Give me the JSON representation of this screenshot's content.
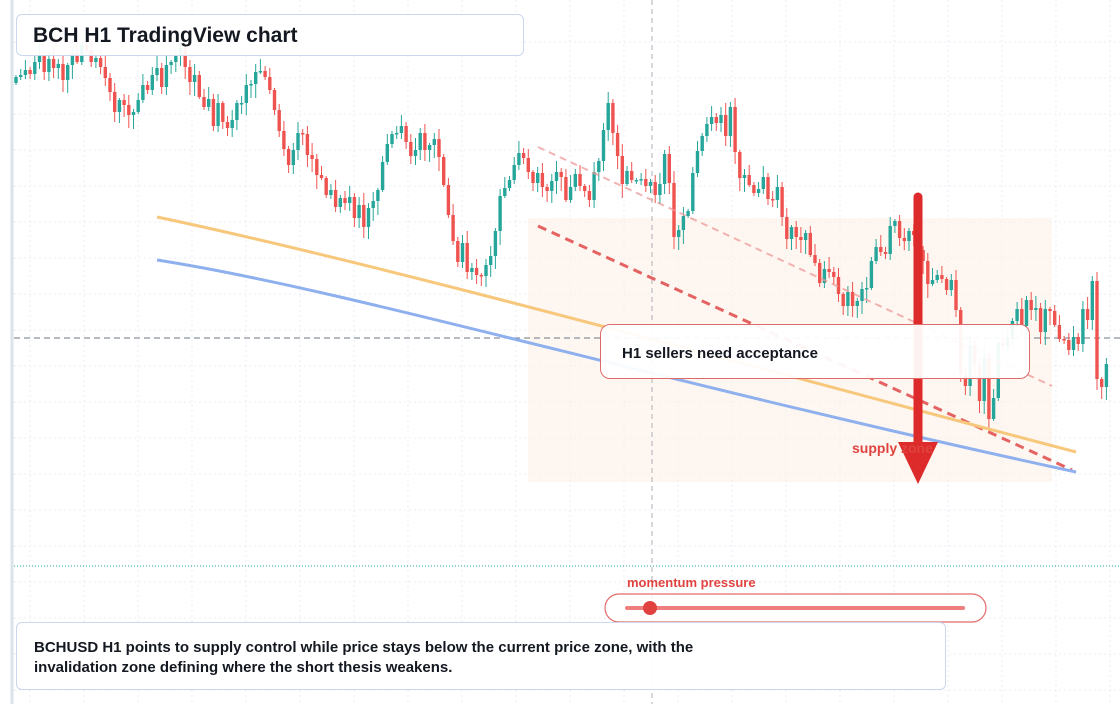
{
  "title": "BCH H1 TradingView chart",
  "callout": "H1 sellers need acceptance",
  "supply_label": "supply zone",
  "momentum_label": "momentum pressure",
  "summary": "BCHUSD H1 points to supply control while price stays below the current price zone, with the invalidation zone defining where the short thesis weakens.",
  "colors": {
    "bull": "#26a69a",
    "bear": "#ef5350",
    "ema_fast": "#f7c87c",
    "ema_slow": "#8fb0ee",
    "arrow": "#dd2a2a",
    "accent": "#e0433f"
  },
  "chart_data": {
    "type": "candlestick",
    "symbol": "BCHUSD",
    "timeframe": "H1",
    "price_levels_relative": [
      1.0,
      0.9,
      0.8,
      0.7,
      0.6,
      0.5,
      0.4,
      0.3,
      0.2,
      0.1,
      0.05,
      0.0
    ],
    "closes_relative": [
      0.903,
      0.905,
      0.91,
      0.906,
      0.918,
      0.925,
      0.908,
      0.921,
      0.912,
      0.916,
      0.9,
      0.915,
      0.927,
      0.918,
      0.935,
      0.93,
      0.918,
      0.922,
      0.913,
      0.902,
      0.888,
      0.868,
      0.88,
      0.875,
      0.865,
      0.868,
      0.88,
      0.895,
      0.89,
      0.905,
      0.912,
      0.893,
      0.915,
      0.918,
      0.925,
      0.932,
      0.913,
      0.898,
      0.905,
      0.883,
      0.873,
      0.881,
      0.854,
      0.877,
      0.858,
      0.852,
      0.86,
      0.877,
      0.877,
      0.895,
      0.896,
      0.908,
      0.909,
      0.903,
      0.89,
      0.87,
      0.849,
      0.831,
      0.815,
      0.83,
      0.847,
      0.846,
      0.825,
      0.821,
      0.805,
      0.802,
      0.785,
      0.79,
      0.773,
      0.782,
      0.777,
      0.783,
      0.762,
      0.775,
      0.753,
      0.772,
      0.779,
      0.79,
      0.818,
      0.836,
      0.846,
      0.847,
      0.854,
      0.838,
      0.824,
      0.83,
      0.847,
      0.83,
      0.835,
      0.841,
      0.823,
      0.795,
      0.765,
      0.739,
      0.718,
      0.737,
      0.708,
      0.712,
      0.705,
      0.704,
      0.715,
      0.724,
      0.749,
      0.784,
      0.792,
      0.8,
      0.815,
      0.827,
      0.822,
      0.808,
      0.797,
      0.807,
      0.793,
      0.789,
      0.799,
      0.808,
      0.803,
      0.78,
      0.793,
      0.806,
      0.794,
      0.789,
      0.78,
      0.808,
      0.819,
      0.85,
      0.877,
      0.847,
      0.824,
      0.796,
      0.809,
      0.8,
      0.8,
      0.801,
      0.794,
      0.798,
      0.785,
      0.796,
      0.826,
      0.797,
      0.743,
      0.75,
      0.764,
      0.769,
      0.807,
      0.829,
      0.844,
      0.856,
      0.863,
      0.857,
      0.865,
      0.844,
      0.873,
      0.828,
      0.802,
      0.805,
      0.795,
      0.787,
      0.791,
      0.803,
      0.781,
      0.78,
      0.793,
      0.763,
      0.741,
      0.753,
      0.743,
      0.74,
      0.747,
      0.725,
      0.717,
      0.697,
      0.711,
      0.708,
      0.703,
      0.686,
      0.674,
      0.688,
      0.674,
      0.679,
      0.691,
      0.692,
      0.719,
      0.733,
      0.728,
      0.726,
      0.754,
      0.759,
      0.742,
      0.739,
      0.749,
      0.745,
      0.73,
      0.719,
      0.696,
      0.7,
      0.705,
      0.701,
      0.69,
      0.7,
      0.67,
      0.606,
      0.594,
      0.635,
      0.615,
      0.579,
      0.622,
      0.561,
      0.582,
      0.637,
      0.634,
      0.641,
      0.659,
      0.671,
      0.654,
      0.68,
      0.67,
      0.672,
      0.648,
      0.671,
      0.669,
      0.655,
      0.641,
      0.64,
      0.63,
      0.643,
      0.636,
      0.671,
      0.66,
      0.699,
      0.601,
      0.593,
      0.616
    ]
  }
}
